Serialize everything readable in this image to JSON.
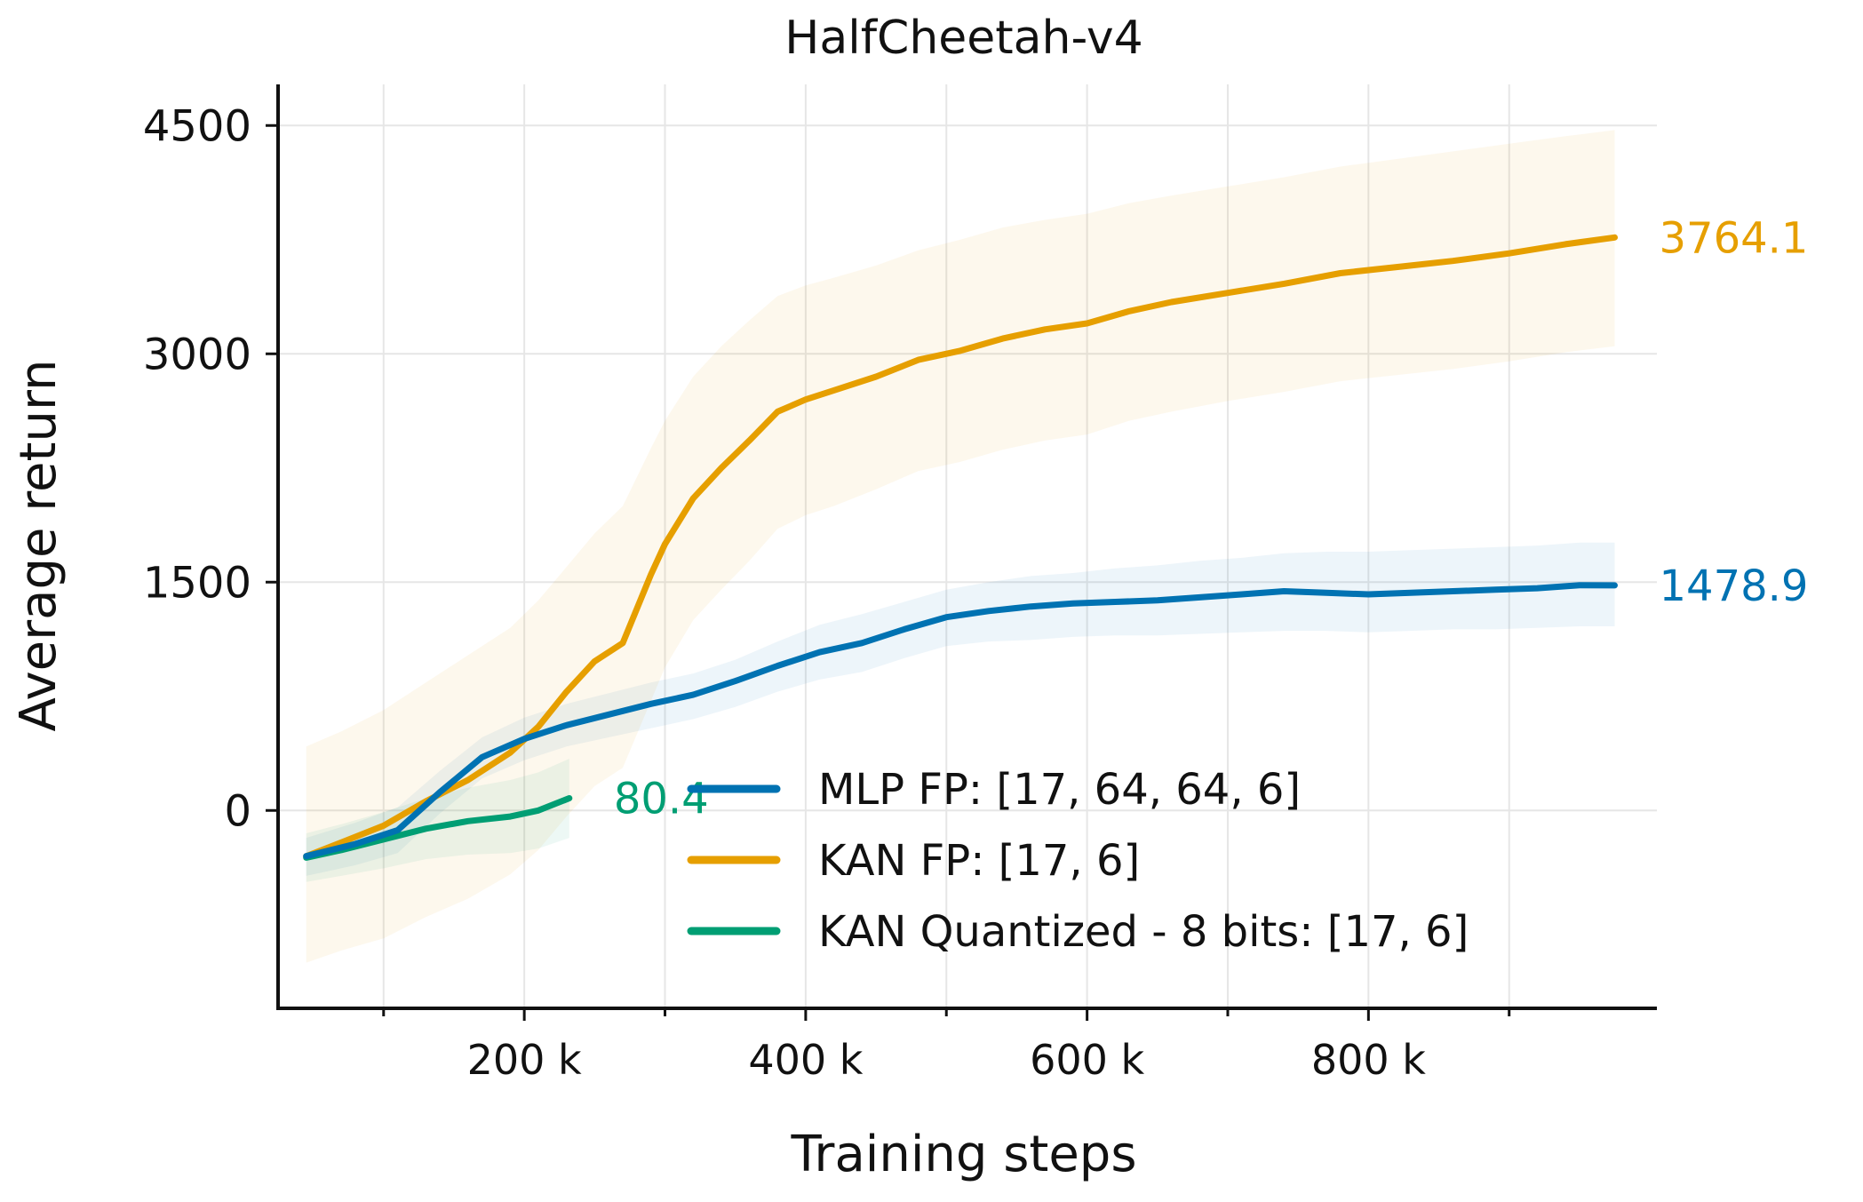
{
  "chart_data": {
    "type": "line",
    "title": "HalfCheetah-v4",
    "xlabel": "Training steps",
    "ylabel": "Average return",
    "xlim": [
      25000,
      1005000
    ],
    "ylim": [
      -1300,
      4770
    ],
    "x_ticks": [
      {
        "value": 200000,
        "label": "200 k"
      },
      {
        "value": 400000,
        "label": "400 k"
      },
      {
        "value": 600000,
        "label": "600 k"
      },
      {
        "value": 800000,
        "label": "800 k"
      }
    ],
    "x_minor_ticks": [
      100000,
      300000,
      500000,
      700000,
      900000
    ],
    "y_ticks": [
      {
        "value": 0,
        "label": "0"
      },
      {
        "value": 1500,
        "label": "1500"
      },
      {
        "value": 3000,
        "label": "3000"
      },
      {
        "value": 4500,
        "label": "4500"
      }
    ],
    "grid": true,
    "legend_position": "lower-right",
    "series": [
      {
        "name": "MLP FP: [17, 64, 64, 6]",
        "color": "#0072B2",
        "final_label": "1478.9",
        "x": [
          45000,
          80000,
          110000,
          140000,
          170000,
          200000,
          230000,
          260000,
          290000,
          320000,
          350000,
          380000,
          410000,
          440000,
          470000,
          500000,
          530000,
          560000,
          590000,
          620000,
          650000,
          680000,
          710000,
          740000,
          770000,
          800000,
          830000,
          860000,
          890000,
          920000,
          950000,
          975000
        ],
        "y": [
          -300,
          -220,
          -130,
          120,
          350,
          470,
          560,
          630,
          700,
          760,
          850,
          950,
          1040,
          1100,
          1190,
          1270,
          1310,
          1340,
          1360,
          1370,
          1380,
          1400,
          1420,
          1440,
          1430,
          1420,
          1430,
          1440,
          1450,
          1460,
          1480,
          1478.9
        ],
        "upper": [
          -180,
          -80,
          20,
          260,
          480,
          610,
          700,
          770,
          840,
          900,
          990,
          1110,
          1220,
          1290,
          1370,
          1450,
          1500,
          1540,
          1560,
          1590,
          1610,
          1640,
          1660,
          1690,
          1700,
          1700,
          1710,
          1720,
          1730,
          1740,
          1760,
          1760
        ],
        "lower": [
          -430,
          -360,
          -280,
          -20,
          210,
          330,
          420,
          480,
          540,
          600,
          680,
          780,
          860,
          910,
          1000,
          1080,
          1110,
          1120,
          1140,
          1150,
          1150,
          1160,
          1170,
          1180,
          1180,
          1170,
          1180,
          1190,
          1190,
          1200,
          1210,
          1210
        ]
      },
      {
        "name": "KAN FP: [17, 6]",
        "color": "#E69F00",
        "final_label": "3764.1",
        "x": [
          45000,
          70000,
          100000,
          130000,
          160000,
          190000,
          210000,
          230000,
          250000,
          270000,
          290000,
          300000,
          320000,
          340000,
          360000,
          380000,
          400000,
          420000,
          450000,
          480000,
          510000,
          540000,
          570000,
          600000,
          630000,
          660000,
          700000,
          740000,
          780000,
          820000,
          860000,
          900000,
          940000,
          975000
        ],
        "y": [
          -300,
          -210,
          -100,
          60,
          200,
          380,
          550,
          780,
          980,
          1100,
          1550,
          1750,
          2050,
          2250,
          2430,
          2620,
          2700,
          2760,
          2850,
          2960,
          3020,
          3100,
          3160,
          3200,
          3280,
          3340,
          3400,
          3460,
          3530,
          3570,
          3610,
          3660,
          3720,
          3764.1
        ],
        "upper": [
          420,
          520,
          660,
          840,
          1020,
          1200,
          1380,
          1600,
          1820,
          2000,
          2380,
          2560,
          2850,
          3050,
          3220,
          3380,
          3450,
          3500,
          3580,
          3680,
          3750,
          3830,
          3880,
          3920,
          3990,
          4040,
          4100,
          4160,
          4230,
          4280,
          4330,
          4380,
          4430,
          4470
        ],
        "lower": [
          -1000,
          -920,
          -840,
          -700,
          -580,
          -420,
          -260,
          -40,
          160,
          280,
          720,
          940,
          1250,
          1450,
          1640,
          1850,
          1940,
          2000,
          2110,
          2230,
          2290,
          2370,
          2430,
          2470,
          2560,
          2620,
          2690,
          2750,
          2820,
          2860,
          2900,
          2950,
          3010,
          3050
        ]
      },
      {
        "name": "KAN Quantized - 8 bits: [17, 6]",
        "color": "#009E73",
        "final_label": "80.4",
        "x": [
          45000,
          70000,
          100000,
          130000,
          160000,
          190000,
          210000,
          232000
        ],
        "y": [
          -310,
          -260,
          -190,
          -120,
          -70,
          -40,
          0,
          80.4
        ],
        "upper": [
          -150,
          -90,
          -10,
          80,
          150,
          200,
          250,
          340
        ],
        "lower": [
          -470,
          -430,
          -380,
          -320,
          -290,
          -280,
          -250,
          -180
        ]
      }
    ]
  }
}
